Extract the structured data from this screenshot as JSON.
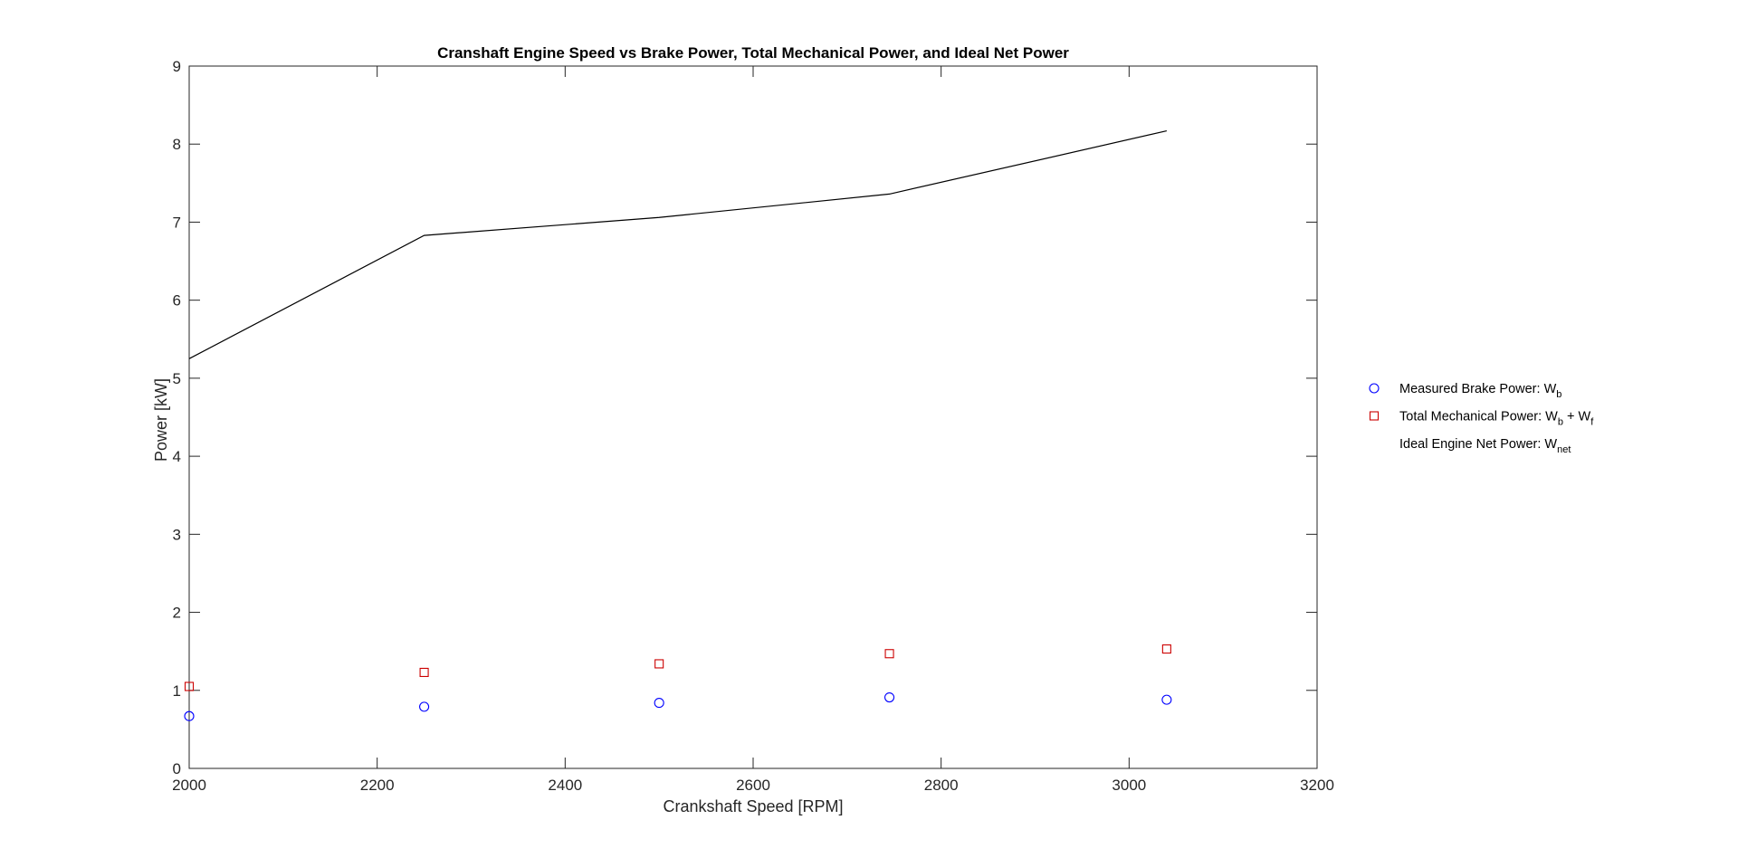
{
  "chart_data": {
    "type": "scatter",
    "title": "Cranshaft Engine Speed vs Brake Power, Total Mechanical Power, and Ideal Net Power",
    "xlabel": "Crankshaft Speed [RPM]",
    "ylabel": "Power [kW]",
    "xlim": [
      2000,
      3200
    ],
    "ylim": [
      0,
      9
    ],
    "xticks": [
      2000,
      2200,
      2400,
      2600,
      2800,
      3000,
      3200
    ],
    "yticks": [
      0,
      1,
      2,
      3,
      4,
      5,
      6,
      7,
      8,
      9
    ],
    "grid": false,
    "legend_position": "outside-right",
    "series": [
      {
        "name": "Measured Brake Power: W",
        "name_subscript": "b",
        "marker": "circle",
        "line": false,
        "color": "#0000FF",
        "x": [
          2000,
          2250,
          2500,
          2745,
          3040
        ],
        "y": [
          0.67,
          0.79,
          0.84,
          0.91,
          0.88
        ]
      },
      {
        "name": "Total Mechanical Power: W",
        "name_subscript": "b",
        "name_mid": " + W",
        "name_subscript2": "f",
        "marker": "square",
        "line": false,
        "color": "#CC0000",
        "x": [
          2000,
          2250,
          2500,
          2745,
          3040
        ],
        "y": [
          1.05,
          1.23,
          1.34,
          1.47,
          1.53
        ]
      },
      {
        "name": "Ideal Engine Net Power: W",
        "name_subscript": "net",
        "marker": "none",
        "line": true,
        "color": "#000000",
        "x": [
          2000,
          2250,
          2500,
          2745,
          3040
        ],
        "y": [
          5.25,
          6.83,
          7.06,
          7.36,
          8.17
        ]
      }
    ]
  }
}
